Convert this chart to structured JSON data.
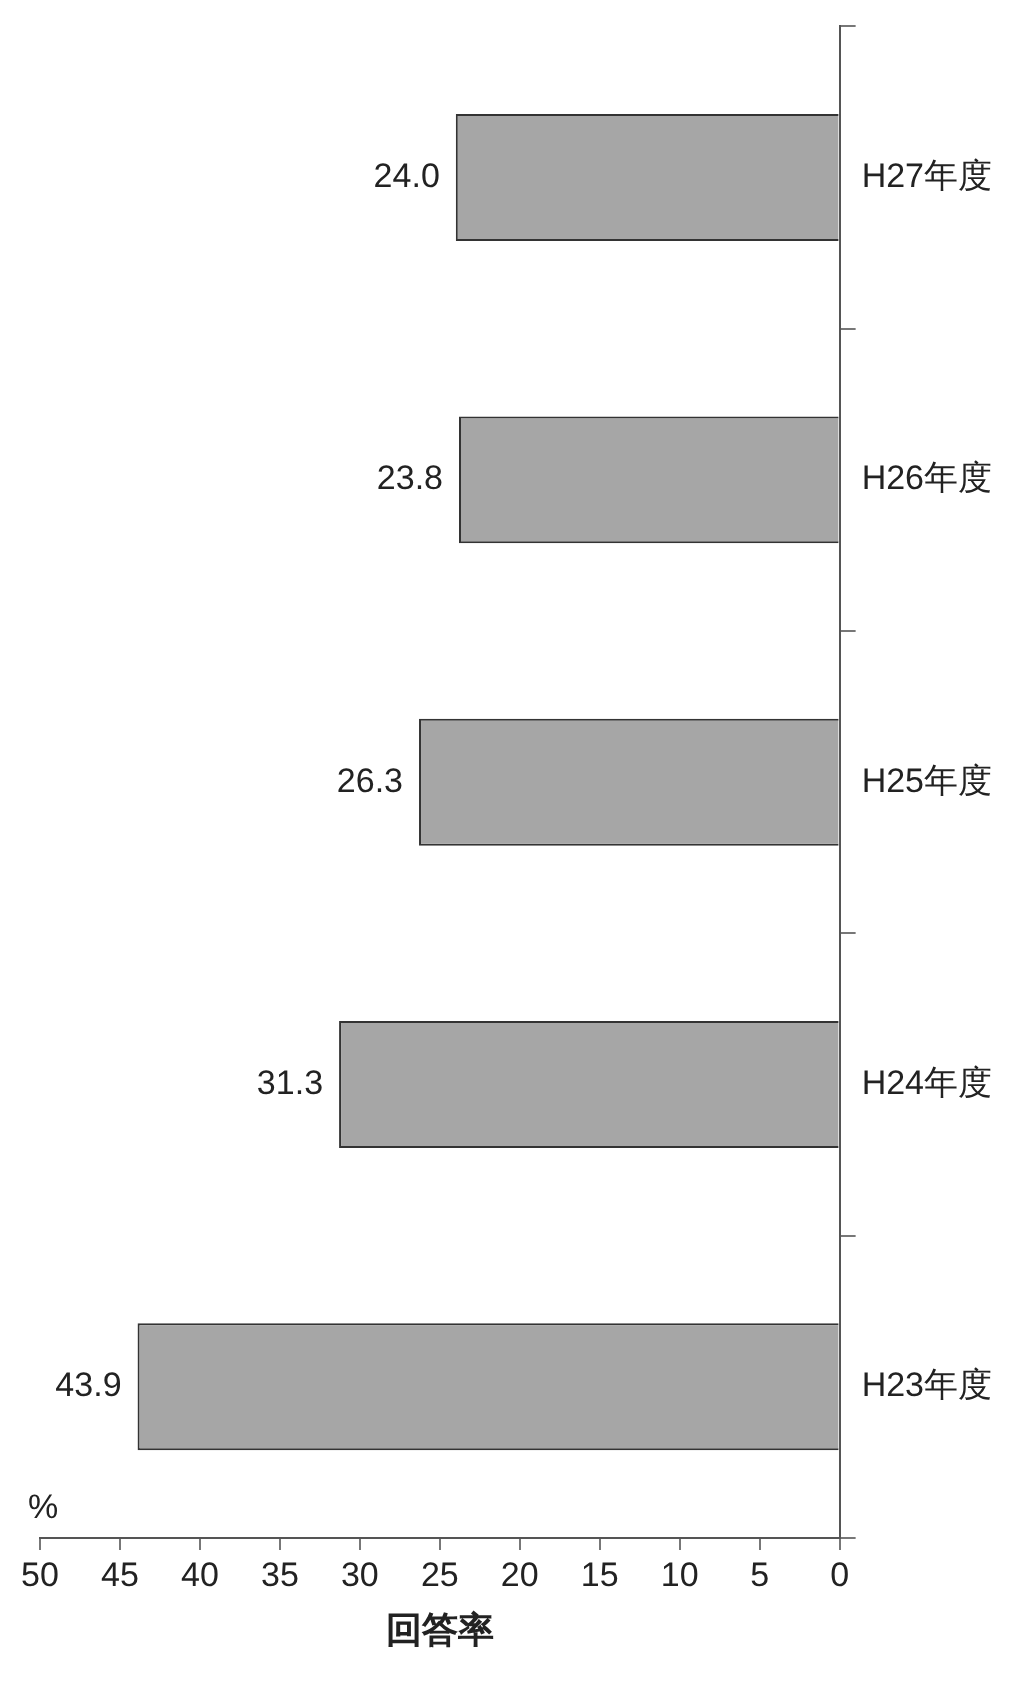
{
  "chart_data": {
    "type": "bar",
    "orientation": "horizontal",
    "xlabel": "回答率",
    "annotations": [
      "%"
    ],
    "categories": [
      "H27年度",
      "H26年度",
      "H25年度",
      "H24年度",
      "H23年度"
    ],
    "values": [
      24.0,
      23.8,
      26.3,
      31.3,
      43.9
    ],
    "value_labels": [
      "24.0",
      "23.8",
      "26.3",
      "31.3",
      "43.9"
    ],
    "color": "#a6a6a6",
    "xlim": [
      50,
      0
    ],
    "xticks": [
      0,
      5,
      10,
      15,
      20,
      25,
      30,
      35,
      40,
      45,
      50
    ],
    "grid": false,
    "legend": false
  }
}
